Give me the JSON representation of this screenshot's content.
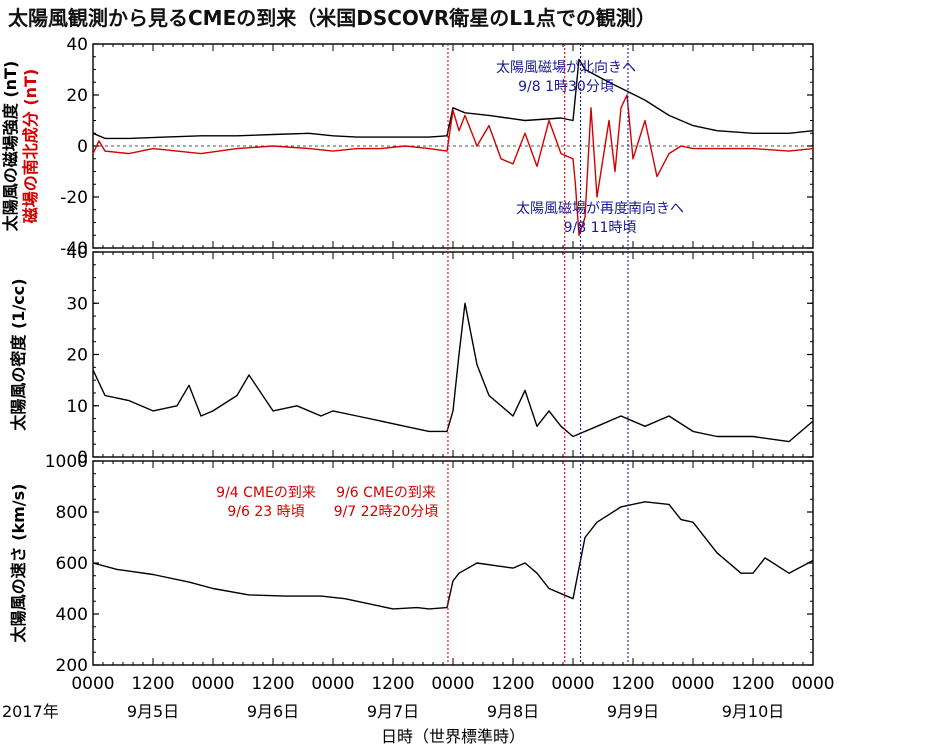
{
  "title": "太陽風観測から見るCMEの到来（米国DSCOVR衛星のL1点での観測）",
  "colors": {
    "red": "#d40000",
    "blue": "#1a1a99",
    "black": "#000000"
  },
  "chart_data": [
    {
      "type": "line",
      "panel": "magnetic_field",
      "ylabel_black": "太陽風の磁場強度 (nT)",
      "ylabel_red": "磁場の南北成分 (nT)",
      "ylim": [
        -40,
        40
      ],
      "yticks": [
        -40,
        -20,
        0,
        20,
        40
      ],
      "zero_line": "dashed",
      "series": [
        {
          "color": "#000000",
          "x": [
            0,
            0.1,
            0.3,
            0.6,
            0.9,
            1.2,
            1.5,
            1.8,
            2.0,
            2.2,
            2.4,
            2.6,
            2.8,
            2.95,
            3.0,
            3.1,
            3.3,
            3.6,
            3.9,
            4.0,
            4.05,
            4.1,
            4.3,
            4.6,
            4.8,
            5.0,
            5.2,
            5.5,
            5.8,
            6.0
          ],
          "y": [
            5,
            3,
            3,
            3.5,
            4,
            4,
            4.5,
            5,
            4,
            3.5,
            3.5,
            3.5,
            3.5,
            4,
            15,
            13,
            12,
            10,
            11,
            10,
            34,
            30,
            25,
            18,
            12,
            8,
            6,
            5,
            5,
            6
          ]
        },
        {
          "color": "#d40000",
          "x": [
            0,
            0.05,
            0.1,
            0.3,
            0.5,
            0.7,
            0.9,
            1.2,
            1.5,
            1.8,
            2.0,
            2.2,
            2.4,
            2.6,
            2.8,
            2.95,
            3.0,
            3.05,
            3.1,
            3.2,
            3.3,
            3.4,
            3.5,
            3.6,
            3.7,
            3.8,
            3.9,
            4.0,
            4.02,
            4.05,
            4.1,
            4.15,
            4.2,
            4.3,
            4.35,
            4.4,
            4.45,
            4.5,
            4.6,
            4.7,
            4.8,
            4.9,
            5.0,
            5.2,
            5.5,
            5.8,
            6.0
          ],
          "y": [
            -3,
            2,
            -2,
            -3,
            -1,
            -2,
            -3,
            -1,
            0,
            -1,
            -2,
            -1,
            -1,
            0,
            -1,
            -2,
            14,
            6,
            12,
            0,
            8,
            -5,
            -7,
            5,
            -8,
            10,
            -3,
            -5,
            -15,
            -35,
            -28,
            15,
            -20,
            10,
            -10,
            15,
            20,
            -5,
            10,
            -12,
            -3,
            0,
            -1,
            -1,
            -1,
            -2,
            -1
          ]
        }
      ],
      "annotations": [
        {
          "text": "太陽風磁場が北向きへ",
          "color": "#1a1a99"
        },
        {
          "text": "9/8 1時30分頃",
          "color": "#1a1a99"
        },
        {
          "text": "太陽風磁場が再度南向きへ",
          "color": "#1a1a99"
        },
        {
          "text": "9/8 11時頃",
          "color": "#1a1a99"
        }
      ]
    },
    {
      "type": "line",
      "panel": "density",
      "ylabel": "太陽風の密度 (1/cc)",
      "ylim": [
        0,
        40
      ],
      "yticks": [
        0,
        10,
        20,
        30,
        40
      ],
      "series": [
        {
          "color": "#000000",
          "x": [
            0,
            0.1,
            0.3,
            0.5,
            0.7,
            0.8,
            0.9,
            1.0,
            1.2,
            1.3,
            1.5,
            1.7,
            1.9,
            2.0,
            2.2,
            2.4,
            2.6,
            2.8,
            2.95,
            3.0,
            3.05,
            3.1,
            3.2,
            3.3,
            3.5,
            3.6,
            3.7,
            3.8,
            3.9,
            4.0,
            4.2,
            4.4,
            4.6,
            4.8,
            5.0,
            5.2,
            5.5,
            5.8,
            6.0
          ],
          "y": [
            17,
            12,
            11,
            9,
            10,
            14,
            8,
            9,
            12,
            16,
            9,
            10,
            8,
            9,
            8,
            7,
            6,
            5,
            5,
            9,
            20,
            30,
            18,
            12,
            8,
            13,
            6,
            9,
            6,
            4,
            6,
            8,
            6,
            8,
            5,
            4,
            4,
            3,
            7
          ]
        }
      ]
    },
    {
      "type": "line",
      "panel": "speed",
      "ylabel": "太陽風の速さ (km/s)",
      "ylim": [
        200,
        1000
      ],
      "yticks": [
        200,
        400,
        600,
        800,
        1000
      ],
      "series": [
        {
          "color": "#000000",
          "x": [
            0,
            0.2,
            0.5,
            0.8,
            1.0,
            1.3,
            1.6,
            1.9,
            2.1,
            2.3,
            2.5,
            2.7,
            2.8,
            2.95,
            3.0,
            3.05,
            3.2,
            3.5,
            3.6,
            3.7,
            3.8,
            4.0,
            4.1,
            4.2,
            4.4,
            4.6,
            4.8,
            4.9,
            5.0,
            5.2,
            5.4,
            5.5,
            5.6,
            5.8,
            6.0
          ],
          "y": [
            600,
            575,
            555,
            525,
            500,
            475,
            470,
            470,
            460,
            440,
            420,
            425,
            420,
            425,
            530,
            560,
            600,
            580,
            600,
            560,
            500,
            460,
            700,
            760,
            820,
            840,
            830,
            770,
            760,
            640,
            560,
            560,
            620,
            560,
            610
          ]
        }
      ],
      "annotations": [
        {
          "text": "9/4 CMEの到来",
          "color": "#d40000"
        },
        {
          "text": "9/6 23 時頃",
          "color": "#d40000"
        },
        {
          "text": "9/6 CMEの到来",
          "color": "#d40000"
        },
        {
          "text": "9/7 22時20分頃",
          "color": "#d40000"
        }
      ]
    }
  ],
  "event_lines": [
    {
      "label": "9/6 23 時頃",
      "x": 2.958,
      "color": "#d40000"
    },
    {
      "label": "9/7 22時20分頃",
      "x": 3.931,
      "color": "#d40000"
    },
    {
      "label": "9/8 1時30分頃",
      "x": 4.063,
      "color": "#1a1a99"
    },
    {
      "label": "9/8 11時頃",
      "x": 4.458,
      "color": "#1a1a99"
    }
  ],
  "x_axis": {
    "range_days": [
      0,
      6
    ],
    "tick_labels": [
      "0000",
      "1200",
      "0000",
      "1200",
      "0000",
      "1200",
      "0000",
      "1200",
      "0000",
      "1200",
      "0000",
      "1200",
      "0000"
    ],
    "year_label": "2017年",
    "date_labels": [
      "9月5日",
      "9月6日",
      "9月7日",
      "9月8日",
      "9月9日",
      "9月10日"
    ],
    "xlabel": "日時（世界標準時）"
  }
}
